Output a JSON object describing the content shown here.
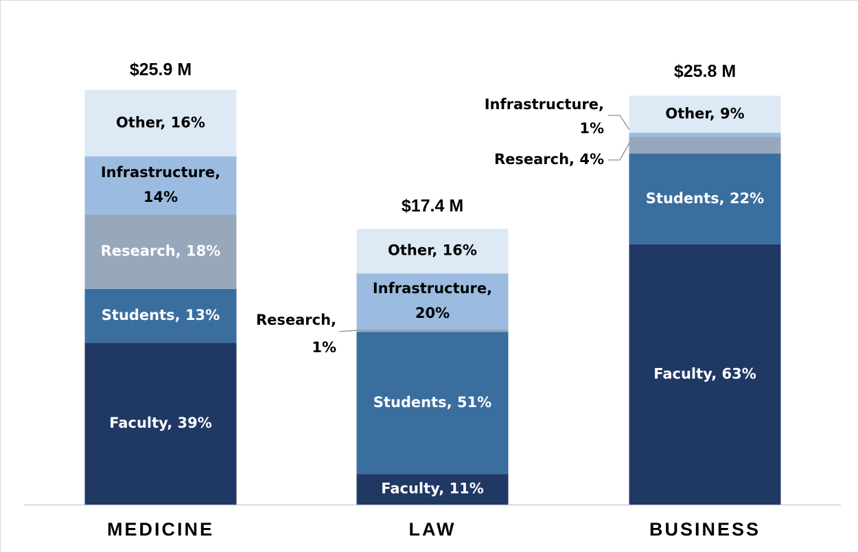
{
  "chart_data": {
    "type": "stacked-bar",
    "categories": [
      "MEDICINE",
      "LAW",
      "BUSINESS"
    ],
    "totals": {
      "values": [
        25.9,
        17.4,
        25.8
      ],
      "value_labels": [
        "$25.9 M",
        "$17.4 M",
        "$25.8 M"
      ]
    },
    "series": [
      {
        "name": "Faculty",
        "color": "#203864",
        "values": [
          39,
          11,
          63
        ],
        "value_labels": [
          "Faculty, 39%",
          "Faculty, 11%",
          "Faculty, 63%"
        ]
      },
      {
        "name": "Students",
        "color": "#3a6e9f",
        "values": [
          13,
          51,
          22
        ],
        "value_labels": [
          "Students, 13%",
          "Students, 51%",
          "Students, 22%"
        ]
      },
      {
        "name": "Research",
        "color": "#97a7bc",
        "values": [
          18,
          1,
          4
        ],
        "value_labels": [
          "Research, 18%",
          "Research, 1%",
          "Research, 4%"
        ]
      },
      {
        "name": "Infrastructure",
        "color": "#9bbbe0",
        "values": [
          14,
          20,
          1
        ],
        "value_labels": [
          "Infrastructure, 14%",
          "Infrastructure, 20%",
          "Infrastructure, 1%"
        ]
      },
      {
        "name": "Other",
        "color": "#dde9f5",
        "values": [
          16,
          16,
          9
        ],
        "value_labels": [
          "Other, 16%",
          "Other, 16%",
          "Other, 9%"
        ]
      }
    ]
  }
}
